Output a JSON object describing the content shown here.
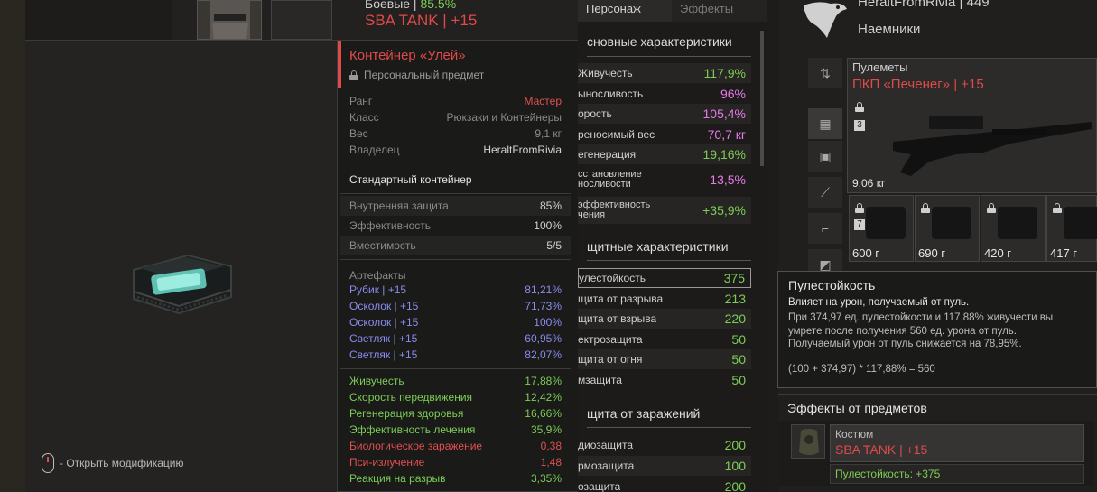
{
  "background": {
    "armor_title": "Боевые | ",
    "armor_pct": "85.5%",
    "armor_name": "SBA TANK | +15"
  },
  "preview": {
    "hint": "- Открыть модификацию"
  },
  "tooltip": {
    "title": "Контейнер «Улей»",
    "subtitle": "Персональный предмет",
    "close": "×",
    "info": [
      {
        "k": "Ранг",
        "v": "Мастер",
        "color": "#e05050"
      },
      {
        "k": "Класс",
        "v": "Рюкзаки и Контейнеры",
        "color": "#8a8a8a"
      },
      {
        "k": "Вес",
        "v": "9,1 кг",
        "color": "#8a8a8a"
      },
      {
        "k": "Владелец",
        "v": "HeraltFromRivia",
        "color": "#d4d4d4"
      }
    ],
    "container_type": "Стандартный контейнер",
    "container_stats": [
      {
        "k": "Внутренняя защита",
        "v": "85%"
      },
      {
        "k": "Эффективность",
        "v": "100%"
      },
      {
        "k": "Вместимость",
        "v": "5/5"
      }
    ],
    "artifacts_label": "Артефакты",
    "artifacts": [
      {
        "k": "Рубик | +15",
        "v": "81,21%"
      },
      {
        "k": "Осколок | +15",
        "v": "71,73%"
      },
      {
        "k": "Осколок | +15",
        "v": "100%"
      },
      {
        "k": "Светляк | +15",
        "v": "60,95%"
      },
      {
        "k": "Светляк | +15",
        "v": "82,07%"
      }
    ],
    "effects": [
      {
        "k": "Живучесть",
        "v": "17,88%",
        "color": "green"
      },
      {
        "k": "Скорость передвижения",
        "v": "12,42%",
        "color": "green"
      },
      {
        "k": "Регенерация здоровья",
        "v": "16,66%",
        "color": "green"
      },
      {
        "k": "Эффективность лечения",
        "v": "35,9%",
        "color": "green"
      },
      {
        "k": "Биологическое заражение",
        "v": "0,38",
        "color": "red"
      },
      {
        "k": "Пси-излучение",
        "v": "1,48",
        "color": "red"
      },
      {
        "k": "Реакция на разрыв",
        "v": "3,35%",
        "color": "green"
      }
    ]
  },
  "character": {
    "tabs": [
      "Персонаж",
      "Эффекты"
    ],
    "basic_header": "сновные характеристики",
    "basic": [
      {
        "k": "Живучесть",
        "v": "117,9%",
        "color": "#7ccd56"
      },
      {
        "k": "ыносливость",
        "v": "96%",
        "color": "#e67ae6"
      },
      {
        "k": "орость",
        "v": "105,4%",
        "color": "#e67ae6"
      },
      {
        "k": "реносимый вес",
        "v": "70,7 кг",
        "color": "#e67ae6"
      },
      {
        "k": "егенерация",
        "v": "19,16%",
        "color": "#7ccd56"
      },
      {
        "k": "сстановление\nносливости",
        "v": "13,5%",
        "color": "#e67ae6"
      },
      {
        "k": "эффективность\nчения",
        "v": "+35,9%",
        "color": "#7ccd56"
      }
    ],
    "protect_header": "щитные характеристики",
    "protect": [
      {
        "k": "улестойкость",
        "v": "375"
      },
      {
        "k": "щита от разрыва",
        "v": "213"
      },
      {
        "k": "щита от взрыва",
        "v": "220"
      },
      {
        "k": "ектрозащита",
        "v": "50"
      },
      {
        "k": "щита от огня",
        "v": "50"
      },
      {
        "k": "мзащита",
        "v": "50"
      }
    ],
    "infect_header": "щита от заражений",
    "infect": [
      {
        "k": "диозащита",
        "v": "200"
      },
      {
        "k": "рмозащита",
        "v": "100"
      },
      {
        "k": "озащита",
        "v": "200"
      }
    ]
  },
  "right": {
    "player_name": "HeraltFromRivia | 449",
    "faction": "Наемники",
    "weapon_category": "Пулеметы",
    "weapon_name": "ПКП «Печенег» | +15",
    "weapon_weight": "9,06 кг",
    "weapon_badge": "3",
    "slots": [
      {
        "w": "600 г",
        "badge": "7"
      },
      {
        "w": "690 г",
        "badge": ""
      },
      {
        "w": "420 г",
        "badge": ""
      },
      {
        "w": "417 г",
        "badge": ""
      }
    ],
    "hover": {
      "title": "Пулестойкость",
      "desc": "Влияет на урон, получаемый от пуль.",
      "body1": "При 374,97 ед. пулестойкости и 117,88% живучести вы",
      "body2": "умрете после получения 560 ед. урона от пуль.",
      "body3": "Получаемый урон от пуль снижается на 78,95%.",
      "formula": "(100 + 374,97) * 117,88% = 560"
    },
    "effects_header": "Эффекты от предметов",
    "effect_category": "Костюм",
    "effect_name": "SBA TANK | +15",
    "effect_bonus": "Пулестойкость: +375"
  }
}
